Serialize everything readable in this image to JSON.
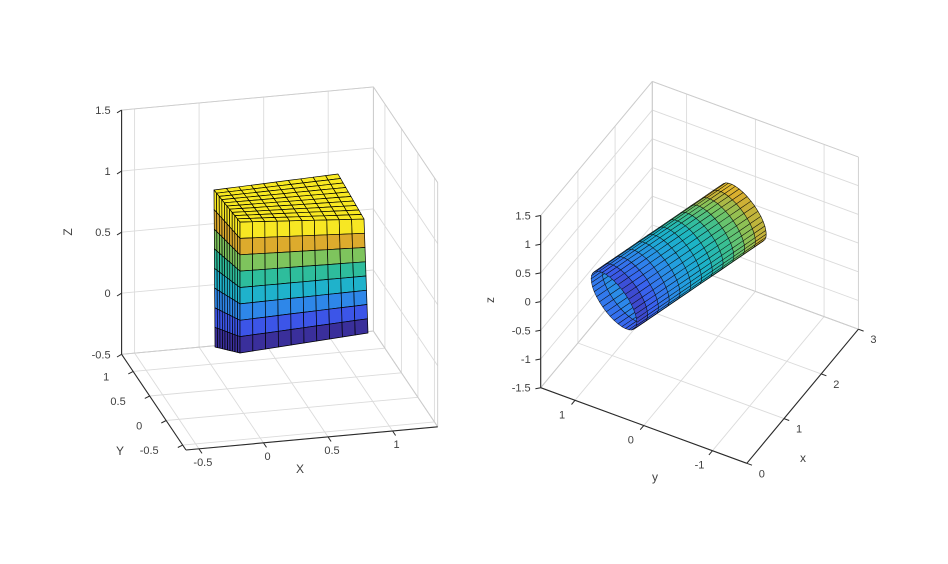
{
  "window": {
    "background": "#ffffff",
    "kind": "matlab-figure-with-two-3d-plots"
  },
  "styles": {
    "grid_color": "#dbdbdb",
    "box_color": "#cccccc",
    "axis_color": "#2a2a2a",
    "font_color": "#404040",
    "tick_font_size": 11,
    "label_font_size": 12,
    "tick_len": 5.5
  },
  "colormap": {
    "name": "parula",
    "stops": [
      [
        0,
        "#3f3cbb"
      ],
      [
        0.1,
        "#3a5fee"
      ],
      [
        0.22,
        "#2e84ec"
      ],
      [
        0.35,
        "#20a4db"
      ],
      [
        0.48,
        "#1cb5c5"
      ],
      [
        0.6,
        "#38bf94"
      ],
      [
        0.72,
        "#7cc55e"
      ],
      [
        0.85,
        "#d9ae2f"
      ],
      [
        0.94,
        "#eecb31"
      ],
      [
        1,
        "#f7e622"
      ]
    ]
  },
  "chart_data": [
    {
      "id": "left-plot",
      "type": "surface3d",
      "title": "",
      "description": "3-D surface of a cube, parula colormap banded by height, black mesh edges, grid on",
      "axes": {
        "x": {
          "label": "X",
          "lim": [
            -0.6,
            1.35
          ],
          "ticks": [
            -0.5,
            0,
            0.5,
            1
          ]
        },
        "y": {
          "label": "Y",
          "lim": [
            -0.6,
            1.35
          ],
          "ticks": [
            -0.5,
            0,
            0.5,
            1
          ]
        },
        "z": {
          "label": "Z",
          "lim": [
            -0.5,
            1.5
          ],
          "ticks": [
            -0.5,
            0,
            0.5,
            1,
            1.5
          ]
        }
      },
      "grid": true,
      "proj": {
        "ex": [
          129.1,
          -11.9
        ],
        "ey": [
          -33.0,
          -49.1
        ],
        "ez": [
          0,
          -122.1
        ],
        "ref": {
          "point": [
            -0.6,
            -0.6,
            -0.5
          ],
          "screen": [
            186,
            450
          ]
        }
      },
      "labelPos": {
        "x": [
          300,
          473,
          0
        ],
        "y": [
          120,
          455,
          0
        ],
        "z": [
          72,
          232,
          -90
        ]
      },
      "tickStyle": {
        "x": {
          "offset": [
            4,
            17
          ],
          "anchor": "middle",
          "dir": [
            0.56,
            0.83
          ]
        },
        "y": {
          "offset": [
            -24,
            9
          ],
          "anchor": "end",
          "dir": [
            -0.9,
            0.44
          ]
        },
        "z": {
          "offset": [
            -11,
            4
          ],
          "anchor": "end",
          "dir": [
            -0.85,
            0.5
          ]
        }
      },
      "surface": {
        "kind": "cube",
        "data_bounds": {
          "x": [
            0,
            0.9
          ],
          "y": [
            0,
            0.9
          ],
          "z": [
            0,
            1.26
          ]
        },
        "screen_corners": {
          "top_left": [
            214,
            190
          ],
          "top_near": [
            240,
            222
          ],
          "top_right": [
            364,
            219
          ],
          "top_far": [
            338,
            174
          ],
          "bottom_left": [
            215,
            347
          ],
          "bottom_near": [
            240,
            353
          ],
          "bottom_right": [
            368,
            333
          ]
        },
        "cols": 10,
        "rows": 8,
        "row_colors_top_to_bottom": [
          "#f7e723",
          "#ddab2d",
          "#7ec45d",
          "#2ebd9c",
          "#1fb2cb",
          "#2e87e9",
          "#3c55e8",
          "#3a2f9b"
        ],
        "top_color": "#f9e921",
        "edge_color": "#000000",
        "edge_width": 0.7
      }
    },
    {
      "id": "right-plot",
      "type": "surface3d",
      "title": "",
      "description": "3-D surface of a tilted cylinder (tube), parula colormap along its length, dense mesh, dark open end cap, grid on",
      "axes": {
        "x": {
          "label": "x",
          "lim": [
            0,
            3
          ],
          "ticks": [
            0,
            1,
            2,
            3
          ]
        },
        "y": {
          "label": "y",
          "lim": [
            -1.5,
            1.5
          ],
          "ticks": [
            1,
            0,
            -1
          ]
        },
        "z": {
          "label": "z",
          "lim": [
            -1.5,
            1.5
          ],
          "ticks": [
            -1.5,
            -1,
            -0.5,
            0,
            0.5,
            1,
            1.5
          ]
        }
      },
      "grid": true,
      "proj": {
        "ex": [
          37.2,
          -44.7
        ],
        "ey": [
          -68.7,
          -25.2
        ],
        "ez": [
          0,
          -57.4
        ],
        "ref": {
          "point": [
            0,
            1.5,
            -1.5
          ],
          "screen": [
            540.7,
            387.7
          ]
        }
      },
      "labelPos": {
        "x": [
          803,
          462,
          0
        ],
        "y": [
          655,
          481,
          0
        ],
        "z": [
          494,
          300,
          -90
        ]
      },
      "tickStyle": {
        "x": {
          "offset": [
            12,
            14
          ],
          "anchor": "start",
          "dir": [
            0.94,
            0.34
          ]
        },
        "y": {
          "offset": [
            -13,
            18
          ],
          "anchor": "middle",
          "dir": [
            -0.64,
            0.77
          ]
        },
        "z": {
          "offset": [
            -10,
            4
          ],
          "anchor": "end",
          "dir": [
            -0.97,
            0.18
          ]
        }
      },
      "surface": {
        "kind": "tube",
        "p0": [
          0.4,
          0.65,
          0.08
        ],
        "p1": [
          2.4,
          -0.15,
          0.41
        ],
        "radius": 0.45,
        "n_around": 36,
        "n_along": 12,
        "color_by": "x",
        "caxis": [
          0.22,
          2.58
        ],
        "cap_end": true,
        "cap_color": "#060606",
        "edge_color": "rgba(10,10,10,0.85)",
        "edge_width": 0.55
      }
    }
  ]
}
